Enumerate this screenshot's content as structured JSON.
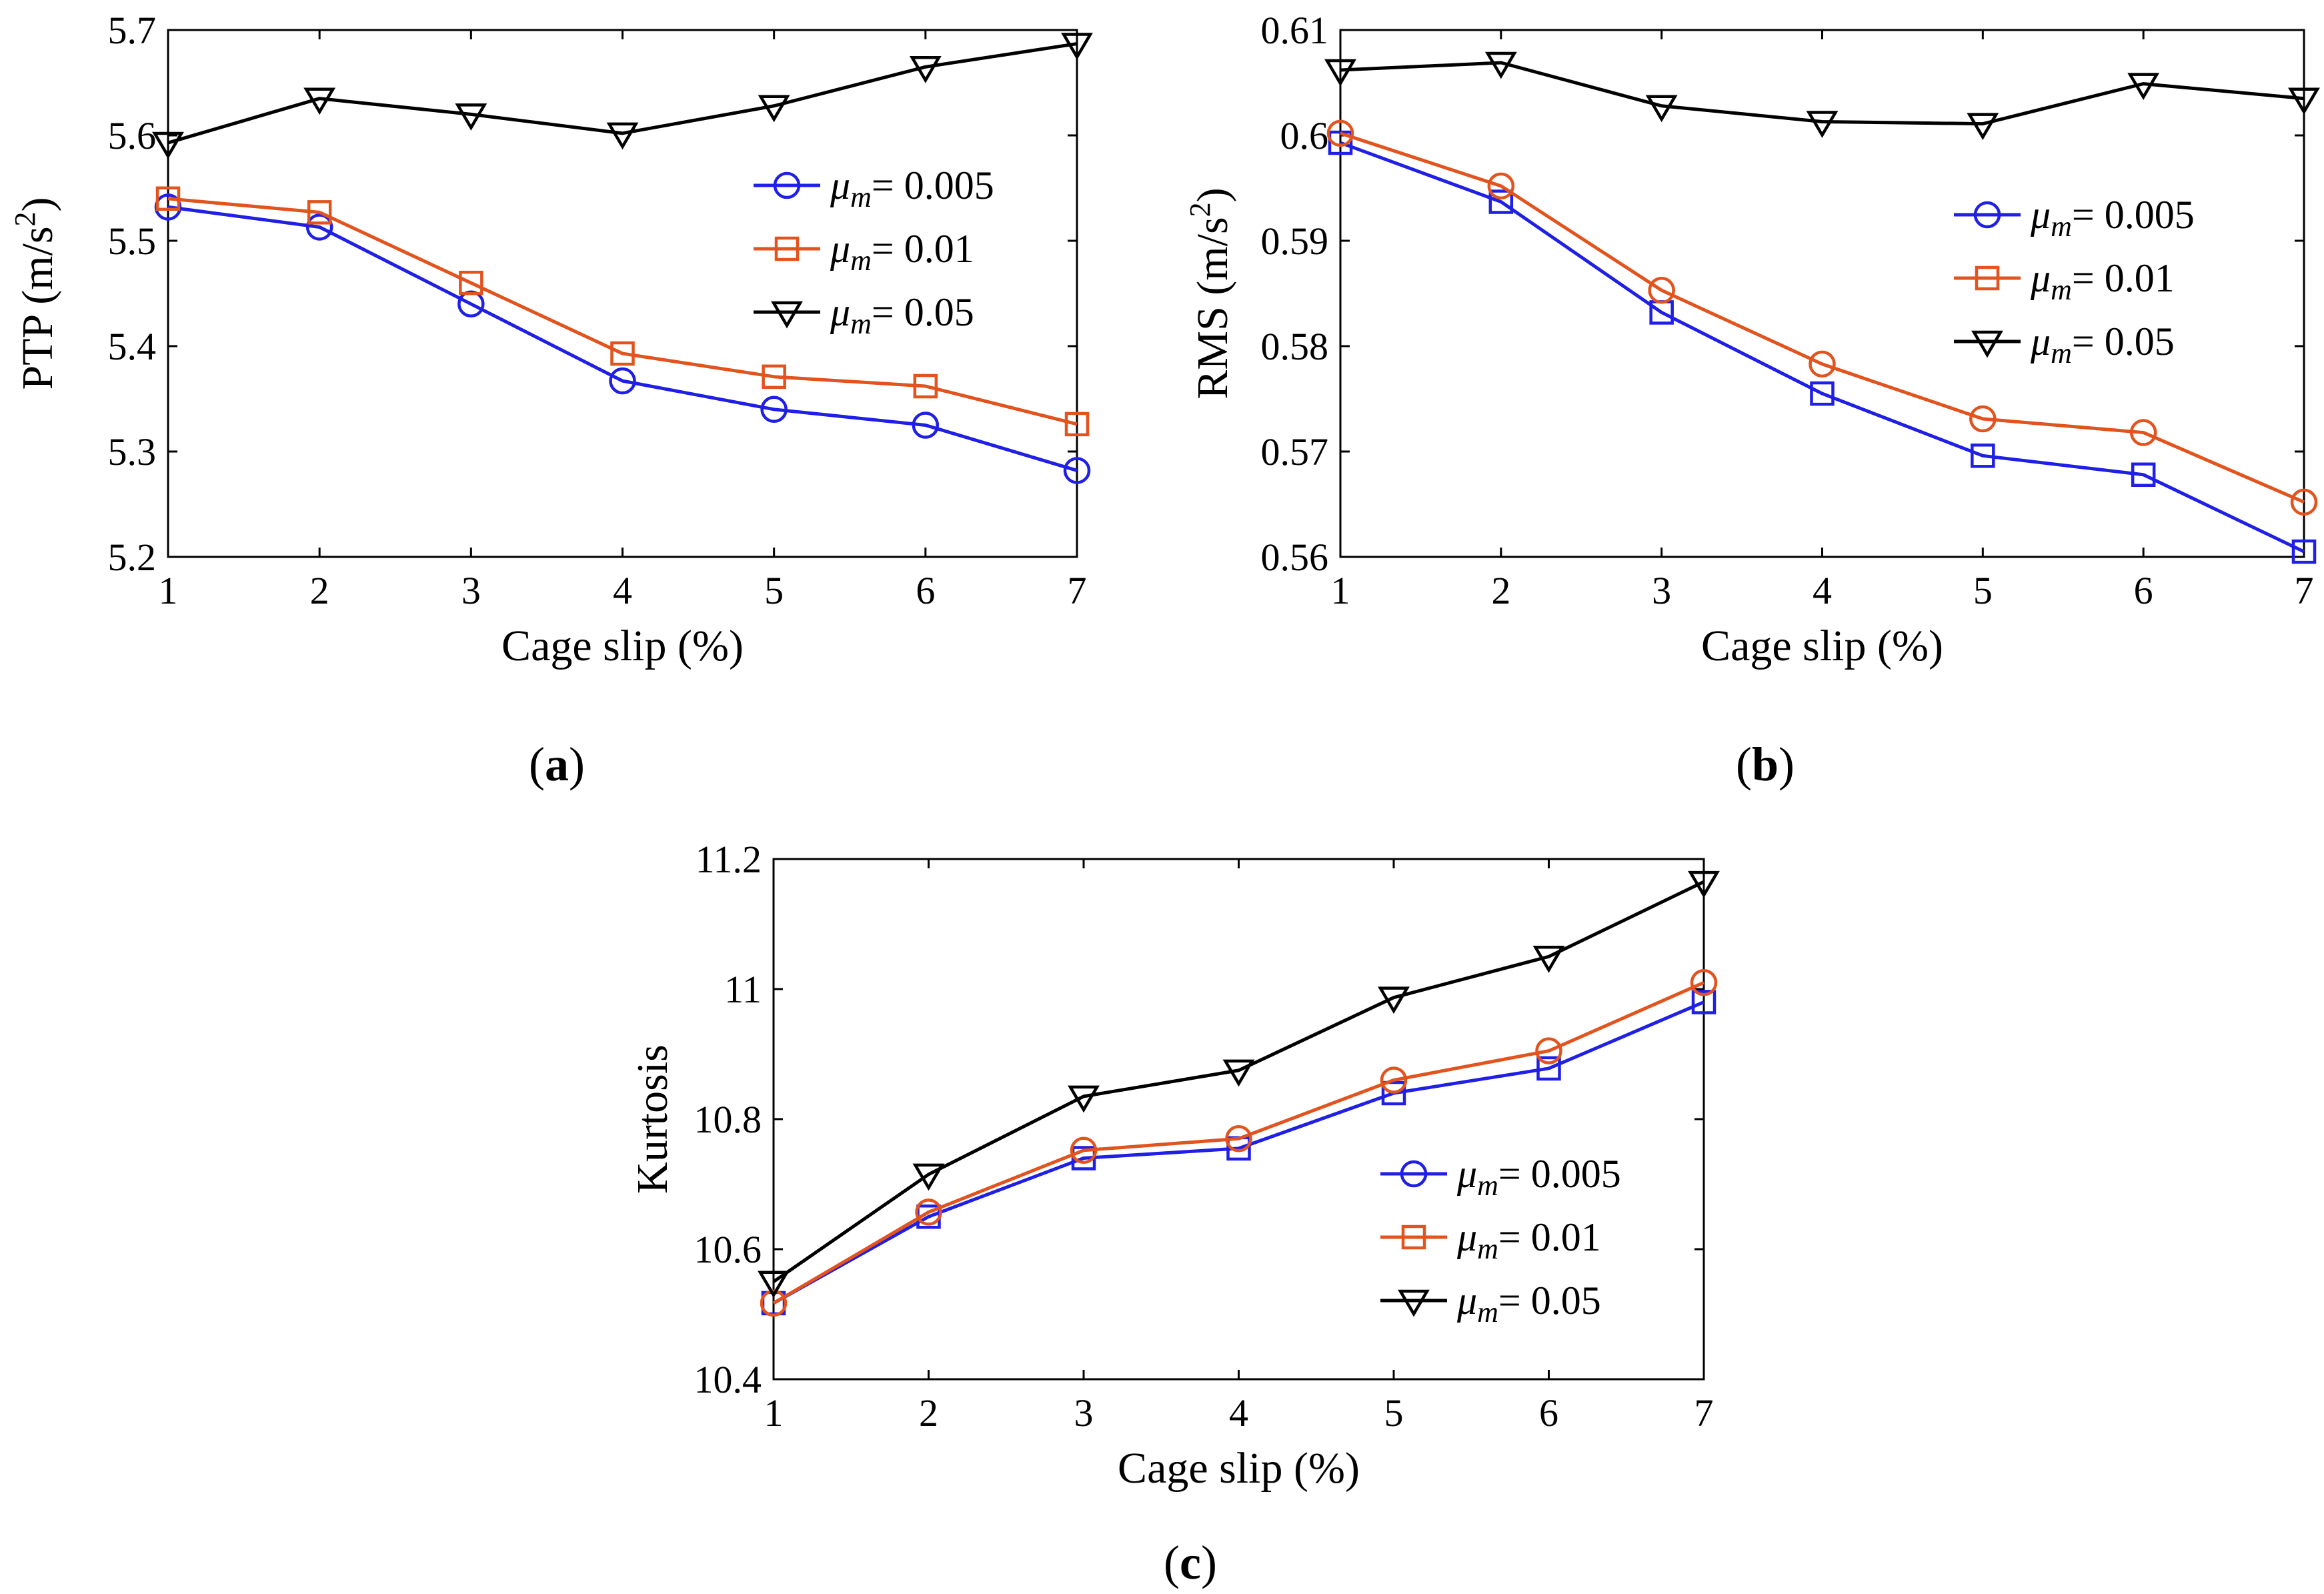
{
  "figure": {
    "panels": [
      "(a)",
      "(b)",
      "(c)"
    ]
  },
  "chart_data": [
    {
      "id": "a",
      "type": "line",
      "panel_label": "a",
      "title": "",
      "xlabel": "Cage slip (%)",
      "ylabel_main": "PTP (m/s",
      "ylabel_sup": "2",
      "ylabel_tail": ")",
      "xlim": [
        1,
        7
      ],
      "ylim": [
        5.2,
        5.7
      ],
      "xticks": [
        1,
        2,
        3,
        4,
        5,
        6,
        7
      ],
      "yticks": [
        5.2,
        5.3,
        5.4,
        5.5,
        5.6,
        5.7
      ],
      "ytick_labels": [
        "5.2",
        "5.3",
        "5.4",
        "5.5",
        "5.6",
        "5.7"
      ],
      "legend_position": "upper-right",
      "x": [
        1,
        2,
        3,
        4,
        5,
        6,
        7
      ],
      "series": [
        {
          "name": "μm = 0.005",
          "mu": "μ",
          "sub": "m",
          "value_label": "= 0.005",
          "color": "#1f1fe6",
          "marker": "circle",
          "values": [
            5.532,
            5.513,
            5.44,
            5.367,
            5.34,
            5.325,
            5.282
          ]
        },
        {
          "name": "μm = 0.01",
          "mu": "μ",
          "sub": "m",
          "value_label": "= 0.01",
          "color": "#e2531d",
          "marker": "square",
          "values": [
            5.54,
            5.527,
            5.46,
            5.393,
            5.371,
            5.362,
            5.326
          ]
        },
        {
          "name": "μm = 0.05",
          "mu": "μ",
          "sub": "m",
          "value_label": "= 0.05",
          "color": "#000000",
          "marker": "triangle",
          "values": [
            5.593,
            5.635,
            5.62,
            5.602,
            5.628,
            5.665,
            5.687
          ]
        }
      ]
    },
    {
      "id": "b",
      "type": "line",
      "panel_label": "b",
      "title": "",
      "xlabel": "Cage slip (%)",
      "ylabel_main": "RMS (m/s",
      "ylabel_sup": "2",
      "ylabel_tail": ")",
      "xlim": [
        1,
        7
      ],
      "ylim": [
        0.56,
        0.61
      ],
      "xticks": [
        1,
        2,
        3,
        4,
        5,
        6,
        7
      ],
      "yticks": [
        0.56,
        0.57,
        0.58,
        0.59,
        0.6,
        0.61
      ],
      "ytick_labels": [
        "0.56",
        "0.57",
        "0.58",
        "0.59",
        "0.6",
        "0.61"
      ],
      "legend_position": "right",
      "x": [
        1,
        2,
        3,
        4,
        5,
        6,
        7
      ],
      "series": [
        {
          "name": "μm = 0.005",
          "mu": "μ",
          "sub": "m",
          "value_label": "= 0.005",
          "color": "#1f1fe6",
          "marker": "circle",
          "line_marker": "square",
          "values": [
            0.5993,
            0.5937,
            0.5832,
            0.5755,
            0.5696,
            0.5678,
            0.5605
          ]
        },
        {
          "name": "μm = 0.01",
          "mu": "μ",
          "sub": "m",
          "value_label": "= 0.01",
          "color": "#e2531d",
          "marker": "square",
          "line_marker": "circle",
          "values": [
            0.6002,
            0.5952,
            0.5853,
            0.5783,
            0.5731,
            0.5718,
            0.5652
          ]
        },
        {
          "name": "μm = 0.05",
          "mu": "μ",
          "sub": "m",
          "value_label": "= 0.05",
          "color": "#000000",
          "marker": "triangle",
          "values": [
            0.6062,
            0.6069,
            0.6028,
            0.6013,
            0.6011,
            0.6049,
            0.6035
          ]
        }
      ]
    },
    {
      "id": "c",
      "type": "line",
      "panel_label": "c",
      "title": "",
      "xlabel": "Cage slip (%)",
      "ylabel_main": "Kurtosis",
      "ylabel_sup": "",
      "ylabel_tail": "",
      "xlim": [
        1,
        7
      ],
      "ylim": [
        10.4,
        11.2
      ],
      "xticks": [
        1,
        2,
        3,
        4,
        5,
        6,
        7
      ],
      "yticks": [
        10.4,
        10.6,
        10.8,
        11.0,
        11.2
      ],
      "ytick_labels": [
        "10.4",
        "10.6",
        "10.8",
        "11",
        "11.2"
      ],
      "legend_position": "lower-right",
      "x": [
        1,
        2,
        3,
        4,
        5,
        6,
        7
      ],
      "series": [
        {
          "name": "μm = 0.005",
          "mu": "μ",
          "sub": "m",
          "value_label": "= 0.005",
          "color": "#1f1fe6",
          "marker": "circle",
          "line_marker": "square",
          "values": [
            10.517,
            10.65,
            10.74,
            10.755,
            10.84,
            10.878,
            10.98
          ]
        },
        {
          "name": "μm = 0.01",
          "mu": "μ",
          "sub": "m",
          "value_label": "= 0.01",
          "color": "#e2531d",
          "marker": "square",
          "line_marker": "circle",
          "values": [
            10.517,
            10.657,
            10.752,
            10.77,
            10.86,
            10.905,
            11.01
          ]
        },
        {
          "name": "μm = 0.05",
          "mu": "μ",
          "sub": "m",
          "value_label": "= 0.05",
          "color": "#000000",
          "marker": "triangle",
          "values": [
            10.55,
            10.715,
            10.835,
            10.875,
            10.987,
            11.05,
            11.165
          ]
        }
      ]
    }
  ]
}
